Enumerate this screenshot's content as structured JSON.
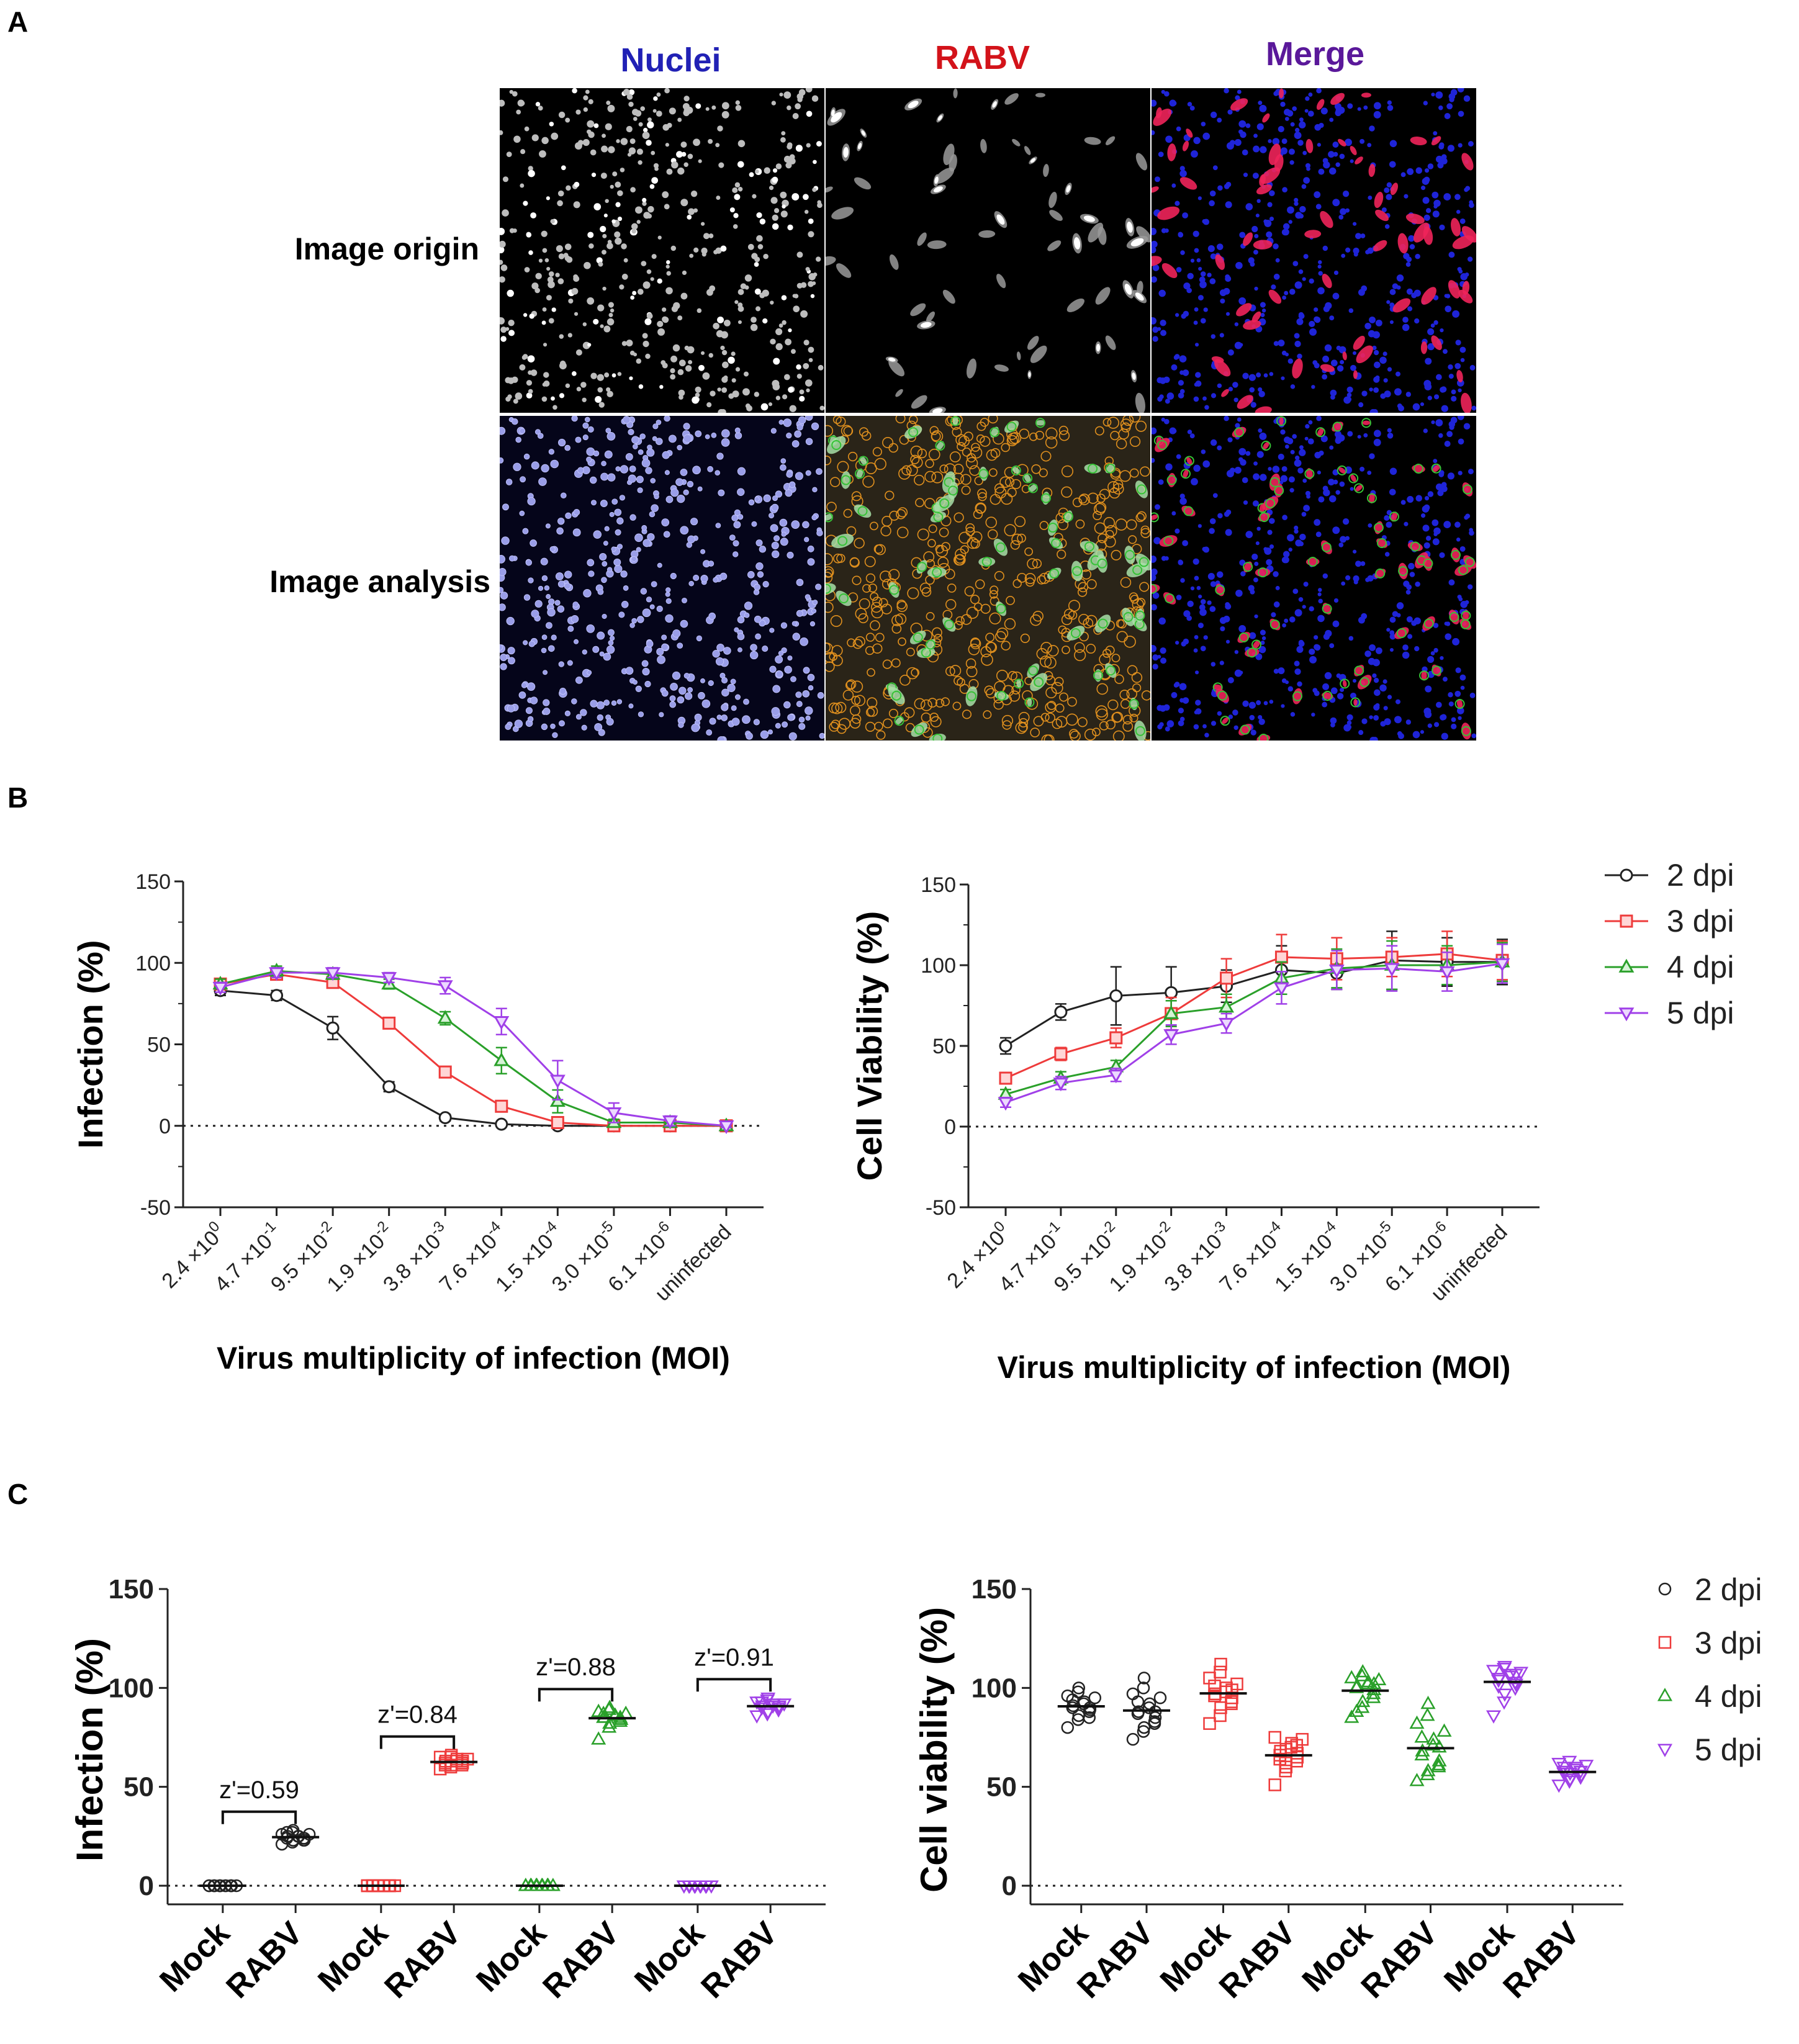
{
  "panels": {
    "a": "A",
    "b": "B",
    "c": "C"
  },
  "panel_a": {
    "columns": [
      {
        "label": "Nuclei",
        "color": "#2121b5"
      },
      {
        "label": "RABV",
        "color": "#d3131a"
      },
      {
        "label": "Merge",
        "color": "#5a189a"
      }
    ],
    "rows": [
      "Image origin",
      "Image analysis"
    ]
  },
  "colors": {
    "dpi2": "#222222",
    "dpi3": "#ee3b3b",
    "dpi4": "#2aa02a",
    "dpi5": "#a040e8"
  },
  "chart_data": [
    {
      "type": "line",
      "ylabel": "Infection (%)",
      "xlabel": "Virus multiplicity of infection (MOI)",
      "ylim": [
        -50,
        150
      ],
      "yticks": [
        "150",
        "100",
        "50",
        "0",
        "-50"
      ],
      "categories": [
        "2.4 ×10^0",
        "4.7 ×10^-1",
        "9.5 ×10^-2",
        "1.9 ×10^-2",
        "3.8 ×10^-3",
        "7.6 ×10^-4",
        "1.5 ×10^-4",
        "3.0 ×10^-5",
        "6.1 ×10^-6",
        "uninfected"
      ],
      "legend": "right",
      "series": [
        {
          "name": "2 dpi",
          "marker": "circle",
          "values": [
            83,
            80,
            60,
            24,
            5,
            1,
            0,
            0,
            0,
            0
          ],
          "errors": [
            3,
            3,
            7,
            3,
            2,
            1,
            1,
            1,
            1,
            1
          ]
        },
        {
          "name": "3 dpi",
          "marker": "square",
          "values": [
            87,
            93,
            88,
            63,
            33,
            12,
            2,
            0,
            0,
            0
          ],
          "errors": [
            3,
            3,
            3,
            3,
            3,
            2,
            2,
            1,
            1,
            1
          ]
        },
        {
          "name": "4 dpi",
          "marker": "triangle-up",
          "values": [
            87,
            95,
            93,
            87,
            66,
            40,
            15,
            2,
            2,
            0
          ],
          "errors": [
            3,
            3,
            3,
            3,
            4,
            8,
            7,
            2,
            2,
            1
          ]
        },
        {
          "name": "5 dpi",
          "marker": "triangle-down",
          "values": [
            85,
            94,
            94,
            91,
            86,
            64,
            28,
            8,
            3,
            0
          ],
          "errors": [
            3,
            3,
            3,
            3,
            5,
            8,
            12,
            6,
            3,
            1
          ]
        }
      ]
    },
    {
      "type": "line",
      "ylabel": "Cell Viability (%)",
      "xlabel": "Virus multiplicity of infection (MOI)",
      "ylim": [
        -50,
        150
      ],
      "yticks": [
        "150",
        "100",
        "50",
        "0",
        "-50"
      ],
      "categories": [
        "2.4 ×10^0",
        "4.7 ×10^-1",
        "9.5 ×10^-2",
        "1.9 ×10^-2",
        "3.8 ×10^-3",
        "7.6 ×10^-4",
        "1.5 ×10^-4",
        "3.0 ×10^-5",
        "6.1 ×10^-6",
        "uninfected"
      ],
      "legend": "right",
      "series": [
        {
          "name": "2 dpi",
          "marker": "circle",
          "values": [
            50,
            71,
            81,
            83,
            87,
            97,
            95,
            103,
            102,
            102
          ],
          "errors": [
            5,
            5,
            18,
            16,
            10,
            15,
            10,
            18,
            15,
            14
          ]
        },
        {
          "name": "3 dpi",
          "marker": "square",
          "values": [
            30,
            45,
            55,
            70,
            92,
            105,
            104,
            105,
            107,
            103
          ],
          "errors": [
            3,
            4,
            6,
            10,
            12,
            14,
            13,
            12,
            14,
            12
          ]
        },
        {
          "name": "4 dpi",
          "marker": "triangle-up",
          "values": [
            20,
            30,
            37,
            70,
            74,
            92,
            98,
            100,
            100,
            102
          ],
          "errors": [
            3,
            4,
            4,
            8,
            8,
            10,
            12,
            15,
            12,
            12
          ]
        },
        {
          "name": "5 dpi",
          "marker": "triangle-down",
          "values": [
            15,
            27,
            32,
            57,
            64,
            86,
            97,
            98,
            96,
            101
          ],
          "errors": [
            3,
            4,
            4,
            6,
            6,
            10,
            12,
            14,
            12,
            12
          ]
        }
      ]
    },
    {
      "type": "scatter",
      "ylabel": "Infection (%)",
      "ylim": [
        0,
        150
      ],
      "yticks": [
        "150",
        "100",
        "50",
        "0"
      ],
      "categories": [
        "Mock",
        "RABV",
        "Mock",
        "RABV",
        "Mock",
        "RABV",
        "Mock",
        "RABV"
      ],
      "annotations": [
        "z'=0.59",
        "z'=0.84",
        "z'=0.88",
        "z'=0.91"
      ],
      "legend": "none",
      "series": [
        {
          "name": "2 dpi",
          "marker": "circle",
          "mock": [
            0,
            0,
            0,
            0,
            0,
            0,
            0,
            0,
            0,
            0,
            0,
            0,
            0,
            0,
            0,
            0
          ],
          "rabv": [
            21,
            22,
            23,
            23,
            24,
            24,
            25,
            25,
            25,
            26,
            26,
            27,
            28,
            24,
            23,
            27
          ]
        },
        {
          "name": "3 dpi",
          "marker": "square",
          "mock": [
            0,
            0,
            0,
            0,
            0,
            0,
            0,
            0,
            0,
            0,
            0,
            0,
            0,
            0,
            0,
            0
          ],
          "rabv": [
            59,
            60,
            61,
            61,
            62,
            62,
            63,
            63,
            64,
            64,
            65,
            65,
            66,
            62,
            63,
            61
          ]
        },
        {
          "name": "4 dpi",
          "marker": "triangle-up",
          "mock": [
            0,
            0,
            0,
            0,
            0,
            0,
            0,
            0,
            0,
            0,
            0,
            0,
            0,
            0,
            0,
            0
          ],
          "rabv": [
            74,
            80,
            82,
            83,
            84,
            85,
            85,
            86,
            86,
            87,
            88,
            89,
            90,
            85,
            84,
            87
          ]
        },
        {
          "name": "5 dpi",
          "marker": "triangle-down",
          "mock": [
            0,
            0,
            0,
            0,
            0,
            0,
            0,
            0,
            0,
            0,
            0,
            0,
            0,
            0,
            0,
            0
          ],
          "rabv": [
            86,
            87,
            88,
            89,
            90,
            90,
            91,
            91,
            92,
            92,
            93,
            94,
            95,
            90,
            91,
            93
          ]
        }
      ]
    },
    {
      "type": "scatter",
      "ylabel": "Cell viability (%)",
      "ylim": [
        0,
        150
      ],
      "yticks": [
        "150",
        "100",
        "50",
        "0"
      ],
      "categories": [
        "Mock",
        "RABV",
        "Mock",
        "RABV",
        "Mock",
        "RABV",
        "Mock",
        "RABV"
      ],
      "legend": "right",
      "series": [
        {
          "name": "2 dpi",
          "marker": "circle",
          "mock": [
            80,
            84,
            86,
            88,
            89,
            90,
            91,
            92,
            93,
            95,
            96,
            98,
            100,
            85,
            90,
            94
          ],
          "rabv": [
            74,
            78,
            80,
            83,
            85,
            87,
            88,
            90,
            92,
            95,
            97,
            100,
            105,
            82,
            88,
            93
          ]
        },
        {
          "name": "3 dpi",
          "marker": "square",
          "mock": [
            82,
            86,
            90,
            93,
            95,
            96,
            97,
            98,
            100,
            102,
            105,
            108,
            112,
            92,
            99,
            101
          ],
          "rabv": [
            51,
            58,
            60,
            63,
            65,
            66,
            68,
            70,
            72,
            74,
            75,
            62,
            69,
            71,
            67,
            64
          ]
        },
        {
          "name": "4 dpi",
          "marker": "triangle-up",
          "mock": [
            85,
            90,
            93,
            97,
            99,
            100,
            101,
            102,
            103,
            104,
            105,
            106,
            108,
            95,
            102,
            88
          ],
          "rabv": [
            53,
            56,
            58,
            61,
            63,
            66,
            68,
            71,
            74,
            78,
            82,
            86,
            92,
            60,
            70,
            75
          ]
        },
        {
          "name": "5 dpi",
          "marker": "triangle-down",
          "mock": [
            86,
            93,
            97,
            100,
            102,
            104,
            105,
            106,
            107,
            108,
            109,
            110,
            111,
            103,
            107,
            101
          ],
          "rabv": [
            51,
            53,
            54,
            55,
            56,
            57,
            58,
            59,
            60,
            61,
            62,
            63,
            57,
            58,
            56,
            60
          ]
        }
      ]
    }
  ]
}
